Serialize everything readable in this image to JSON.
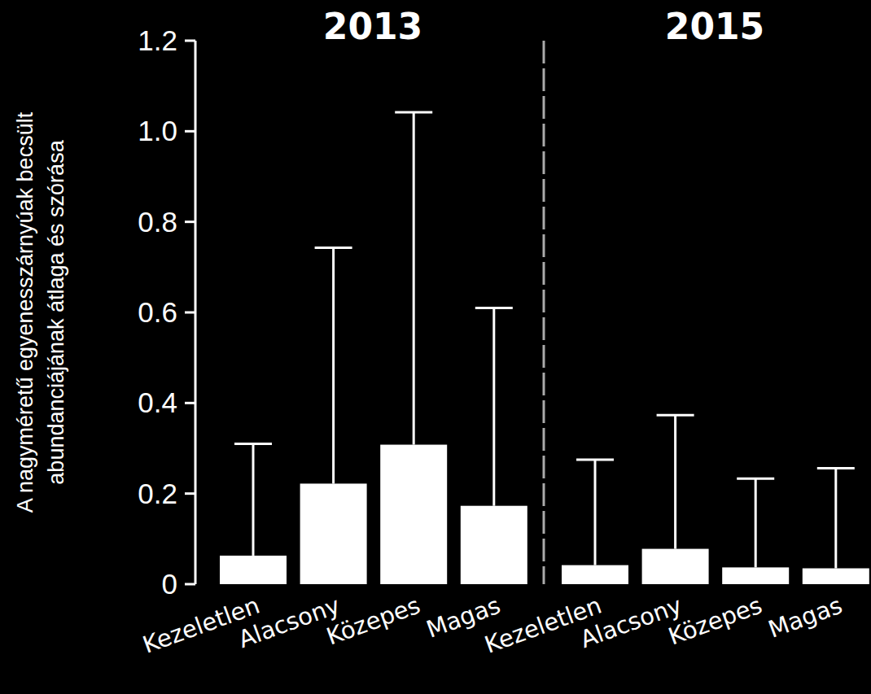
{
  "chart_data": [
    {
      "type": "bar",
      "title": "2013",
      "y_label": [
        "A nagyméretű egyenesszárnyúak becsült",
        "abundanciájának átlaga és szórása"
      ],
      "categories": [
        "Kezeletlen",
        "Alacsony",
        "Közepes",
        "Magas"
      ],
      "values": [
        0.063,
        0.222,
        0.308,
        0.173
      ],
      "errors": [
        0.247,
        0.521,
        0.734,
        0.437
      ],
      "color": "#ffffff",
      "ylim": [
        0,
        1.2
      ],
      "yticks": [
        0,
        0.2,
        0.4,
        0.6,
        0.8,
        {
          "value": 1,
          "label": "1.0"
        },
        1.2
      ],
      "grid": false
    },
    {
      "type": "bar",
      "title": "2015",
      "categories": [
        "Kezeletlen",
        "Alacsony",
        "Közepes",
        "Magas"
      ],
      "values": [
        0.042,
        0.078,
        0.037,
        0.035
      ],
      "errors": [
        0.233,
        0.295,
        0.196,
        0.221
      ],
      "color": "#ffffff",
      "ylim": [
        0,
        1.2
      ],
      "tick_labels": "x",
      "grid": false
    }
  ]
}
